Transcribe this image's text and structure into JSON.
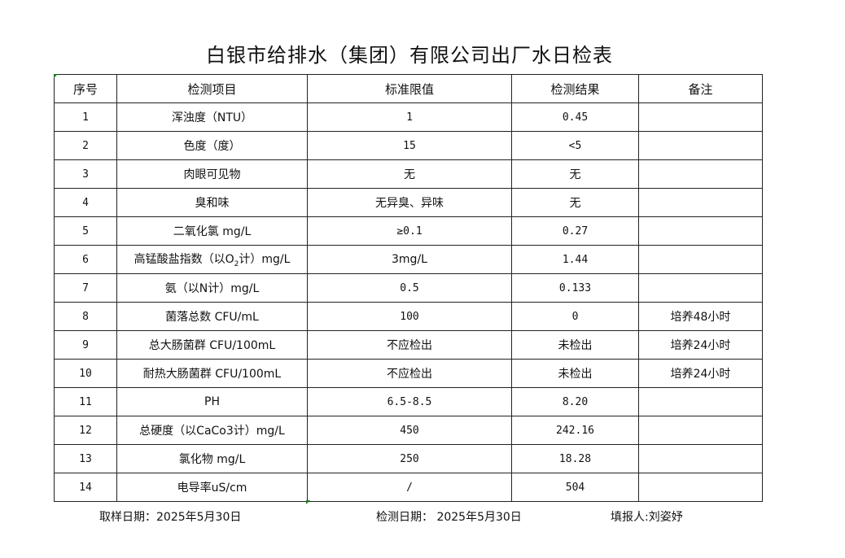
{
  "title": "白银市给排水（集团）有限公司出厂水日检表",
  "headers": [
    "序号",
    "检测项目",
    "标准限值",
    "检测结果",
    "备注"
  ],
  "rows": [
    {
      "no": "1",
      "item": "浑浊度（NTU）",
      "limit": "1",
      "result": "0.45",
      "note": ""
    },
    {
      "no": "2",
      "item": "色度（度）",
      "limit": "15",
      "result": "<5",
      "note": ""
    },
    {
      "no": "3",
      "item": "肉眼可见物",
      "limit": "无",
      "result": "无",
      "note": ""
    },
    {
      "no": "4",
      "item": "臭和味",
      "limit": "无异臭、异味",
      "result": "无",
      "note": ""
    },
    {
      "no": "5",
      "item": "二氧化氯 mg/L",
      "limit": "≥0.1",
      "result": "0.27",
      "note": ""
    },
    {
      "no": "6",
      "item": "高锰酸盐指数（以O",
      "item_sub": "2",
      "item_suffix": "计）mg/L",
      "limit": "3mg/L",
      "result": "1.44",
      "note": ""
    },
    {
      "no": "7",
      "item": "氨（以N计）mg/L",
      "limit": "0.5",
      "result": "0.133",
      "note": ""
    },
    {
      "no": "8",
      "item": "菌落总数 CFU/mL",
      "limit": "100",
      "result": "0",
      "note": "培养48小时"
    },
    {
      "no": "9",
      "item": "总大肠菌群 CFU/100mL",
      "limit": "不应检出",
      "result": "未检出",
      "note": "培养24小时"
    },
    {
      "no": "10",
      "item": "耐热大肠菌群 CFU/100mL",
      "limit": "不应检出",
      "result": "未检出",
      "note": "培养24小时"
    },
    {
      "no": "11",
      "item": "PH",
      "limit": "6.5-8.5",
      "result": "8.20",
      "note": ""
    },
    {
      "no": "12",
      "item": "总硬度（以CaCo3计）mg/L",
      "limit": "450",
      "result": "242.16",
      "note": ""
    },
    {
      "no": "13",
      "item": "氯化物 mg/L",
      "limit": "250",
      "result": "18.28",
      "note": ""
    },
    {
      "no": "14",
      "item": "电导率uS/cm",
      "limit": "/",
      "result": "504",
      "note": ""
    }
  ],
  "footer": {
    "sampling_date": "取样日期：2025年5月30日",
    "test_date": "检测日期： 2025年5月30日",
    "reporter": "填报人:刘姿妤"
  },
  "colors": {
    "border": "#222222",
    "cell_marker": "#1e7a1e"
  }
}
